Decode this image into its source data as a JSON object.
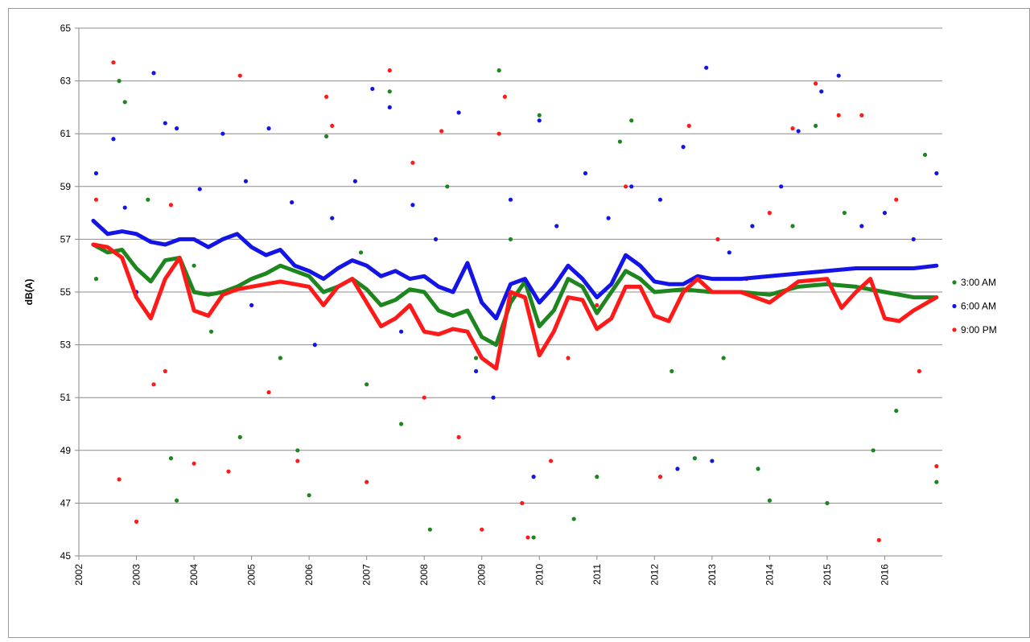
{
  "chart_data": {
    "type": "scatter",
    "y_label": "dB(A)",
    "xlim": [
      2002,
      2017
    ],
    "xticks": [
      2002,
      2003,
      2004,
      2005,
      2006,
      2007,
      2008,
      2009,
      2010,
      2011,
      2012,
      2013,
      2014,
      2015,
      2016
    ],
    "ylim": [
      45,
      65
    ],
    "yticks": [
      45,
      47,
      49,
      51,
      53,
      55,
      57,
      59,
      61,
      63,
      65
    ],
    "grid": true,
    "legend": "right",
    "series": [
      {
        "name": "3:00 AM",
        "color": "#1e861e",
        "x": [
          2002.3,
          2002.7,
          2002.8,
          2003.2,
          2003.6,
          2003.7,
          2004.3,
          2004.8,
          2005.5,
          2005.8,
          2006.0,
          2006.3,
          2006.9,
          2007.4,
          2007.6,
          2008.1,
          2008.4,
          2008.9,
          2009.3,
          2009.5,
          2009.9,
          2010.0,
          2010.6,
          2011.0,
          2011.4,
          2011.6,
          2012.3,
          2012.7,
          2013.2,
          2013.8,
          2014.0,
          2014.4,
          2014.8,
          2015.0,
          2015.3,
          2015.8,
          2016.2,
          2016.7,
          2016.9,
          2007.0,
          2004.0
        ],
        "values": [
          55.5,
          63.0,
          62.2,
          58.5,
          48.7,
          47.1,
          53.5,
          49.5,
          52.5,
          49.0,
          47.3,
          60.9,
          56.5,
          62.6,
          50.0,
          46.0,
          59.0,
          52.5,
          63.4,
          57.0,
          45.7,
          61.7,
          46.4,
          48.0,
          60.7,
          61.5,
          52.0,
          48.7,
          52.5,
          48.3,
          47.1,
          57.5,
          61.3,
          47.0,
          58.0,
          49.0,
          50.5,
          60.2,
          47.8,
          51.5,
          56.0
        ],
        "trend_x": [
          2002.25,
          2002.5,
          2002.75,
          2003,
          2003.25,
          2003.5,
          2003.75,
          2004,
          2004.25,
          2004.5,
          2004.75,
          2005,
          2005.25,
          2005.5,
          2005.75,
          2006,
          2006.25,
          2006.5,
          2006.75,
          2007,
          2007.25,
          2007.5,
          2007.75,
          2008,
          2008.25,
          2008.5,
          2008.75,
          2009,
          2009.25,
          2009.5,
          2009.75,
          2010,
          2010.25,
          2010.5,
          2010.75,
          2011,
          2011.25,
          2011.5,
          2011.75,
          2012,
          2012.5,
          2013,
          2013.5,
          2014,
          2014.5,
          2015,
          2015.5,
          2016,
          2016.5,
          2016.9
        ],
        "trend": [
          56.8,
          56.5,
          56.6,
          55.9,
          55.4,
          56.2,
          56.3,
          55.0,
          54.9,
          55.0,
          55.2,
          55.5,
          55.7,
          56.0,
          55.8,
          55.6,
          55.0,
          55.2,
          55.5,
          55.1,
          54.5,
          54.7,
          55.1,
          55.0,
          54.3,
          54.1,
          54.3,
          53.3,
          53.0,
          54.6,
          55.4,
          53.7,
          54.3,
          55.5,
          55.2,
          54.2,
          55.0,
          55.8,
          55.5,
          55.0,
          55.1,
          55.0,
          55.0,
          54.9,
          55.2,
          55.3,
          55.2,
          55.0,
          54.8,
          54.8
        ]
      },
      {
        "name": "6:00 AM",
        "color": "#1414e6",
        "x": [
          2002.3,
          2002.6,
          2002.8,
          2003.3,
          2003.5,
          2003.7,
          2004.1,
          2004.5,
          2004.9,
          2005.3,
          2005.7,
          2006.1,
          2006.4,
          2006.8,
          2007.1,
          2007.4,
          2007.8,
          2008.2,
          2008.6,
          2008.9,
          2009.2,
          2009.5,
          2009.9,
          2010.0,
          2010.3,
          2010.8,
          2011.2,
          2011.6,
          2012.1,
          2012.5,
          2012.9,
          2013.3,
          2013.7,
          2014.2,
          2014.5,
          2014.9,
          2015.2,
          2015.6,
          2016.0,
          2016.5,
          2016.9,
          2007.6,
          2005.0,
          2003.0,
          2013.0,
          2012.4
        ],
        "values": [
          59.5,
          60.8,
          58.2,
          63.3,
          61.4,
          61.2,
          58.9,
          61.0,
          59.2,
          61.2,
          58.4,
          53.0,
          57.8,
          59.2,
          62.7,
          62.0,
          58.3,
          57.0,
          61.8,
          52.0,
          51.0,
          58.5,
          48.0,
          61.5,
          57.5,
          59.5,
          57.8,
          59.0,
          58.5,
          60.5,
          63.5,
          56.5,
          57.5,
          59.0,
          61.1,
          62.6,
          63.2,
          57.5,
          58.0,
          57.0,
          59.5,
          53.5,
          54.5,
          55.0,
          48.6,
          48.3
        ],
        "trend_x": [
          2002.25,
          2002.5,
          2002.75,
          2003,
          2003.25,
          2003.5,
          2003.75,
          2004,
          2004.25,
          2004.5,
          2004.75,
          2005,
          2005.25,
          2005.5,
          2005.75,
          2006,
          2006.25,
          2006.5,
          2006.75,
          2007,
          2007.25,
          2007.5,
          2007.75,
          2008,
          2008.25,
          2008.5,
          2008.75,
          2009,
          2009.25,
          2009.5,
          2009.75,
          2010,
          2010.25,
          2010.5,
          2010.75,
          2011,
          2011.25,
          2011.5,
          2011.75,
          2012,
          2012.25,
          2012.5,
          2012.75,
          2013,
          2013.5,
          2014,
          2014.5,
          2015,
          2015.5,
          2016,
          2016.5,
          2016.9
        ],
        "trend": [
          57.7,
          57.2,
          57.3,
          57.2,
          56.9,
          56.8,
          57.0,
          57.0,
          56.7,
          57.0,
          57.2,
          56.7,
          56.4,
          56.6,
          56.0,
          55.8,
          55.5,
          55.9,
          56.2,
          56.0,
          55.6,
          55.8,
          55.5,
          55.6,
          55.2,
          55.0,
          56.1,
          54.6,
          54.0,
          55.3,
          55.5,
          54.6,
          55.2,
          56.0,
          55.5,
          54.8,
          55.3,
          56.4,
          56.0,
          55.4,
          55.3,
          55.3,
          55.6,
          55.5,
          55.5,
          55.6,
          55.7,
          55.8,
          55.9,
          55.9,
          55.9,
          56.0
        ]
      },
      {
        "name": "9:00 PM",
        "color": "#ff1a1a",
        "x": [
          2002.3,
          2002.6,
          2002.7,
          2003.0,
          2003.3,
          2003.6,
          2004.0,
          2004.8,
          2004.6,
          2005.3,
          2005.8,
          2006.3,
          2006.4,
          2007.0,
          2007.4,
          2007.8,
          2008.3,
          2008.6,
          2009.0,
          2009.4,
          2009.3,
          2009.7,
          2009.8,
          2010.2,
          2010.5,
          2011.0,
          2011.5,
          2012.1,
          2012.6,
          2013.1,
          2013.6,
          2014.0,
          2014.4,
          2014.8,
          2015.2,
          2015.6,
          2015.9,
          2016.2,
          2016.6,
          2016.9,
          2003.5,
          2008.0
        ],
        "values": [
          58.5,
          63.7,
          47.9,
          46.3,
          51.5,
          58.3,
          48.5,
          63.2,
          48.2,
          51.2,
          48.6,
          62.4,
          61.3,
          47.8,
          63.4,
          59.9,
          61.1,
          49.5,
          46.0,
          62.4,
          61.0,
          47.0,
          45.7,
          48.6,
          52.5,
          54.5,
          59.0,
          48.0,
          61.3,
          57.0,
          55.5,
          58.0,
          61.2,
          62.9,
          61.7,
          61.7,
          45.6,
          58.5,
          52.0,
          48.4,
          52.0,
          51.0
        ],
        "trend_x": [
          2002.25,
          2002.5,
          2002.75,
          2003,
          2003.25,
          2003.5,
          2003.75,
          2004,
          2004.25,
          2004.5,
          2004.75,
          2005,
          2005.5,
          2005.75,
          2006,
          2006.25,
          2006.5,
          2006.75,
          2007,
          2007.25,
          2007.5,
          2007.75,
          2008,
          2008.25,
          2008.5,
          2008.75,
          2009,
          2009.25,
          2009.5,
          2009.75,
          2010,
          2010.25,
          2010.5,
          2010.75,
          2011,
          2011.25,
          2011.5,
          2011.75,
          2012,
          2012.25,
          2012.5,
          2012.75,
          2013,
          2013.5,
          2014,
          2014.5,
          2015,
          2015.25,
          2015.5,
          2015.75,
          2016,
          2016.25,
          2016.5,
          2016.9
        ],
        "trend": [
          56.8,
          56.7,
          56.3,
          54.8,
          54.0,
          55.5,
          56.3,
          54.3,
          54.1,
          54.9,
          55.1,
          55.2,
          55.4,
          55.3,
          55.2,
          54.5,
          55.2,
          55.5,
          54.6,
          53.7,
          54.0,
          54.5,
          53.5,
          53.4,
          53.6,
          53.5,
          52.5,
          52.1,
          55.0,
          54.8,
          52.6,
          53.5,
          54.8,
          54.7,
          53.6,
          54.0,
          55.2,
          55.2,
          54.1,
          53.9,
          55.0,
          55.5,
          55.0,
          55.0,
          54.6,
          55.4,
          55.5,
          54.4,
          55.0,
          55.5,
          54.0,
          53.9,
          54.3,
          54.8
        ]
      }
    ]
  }
}
